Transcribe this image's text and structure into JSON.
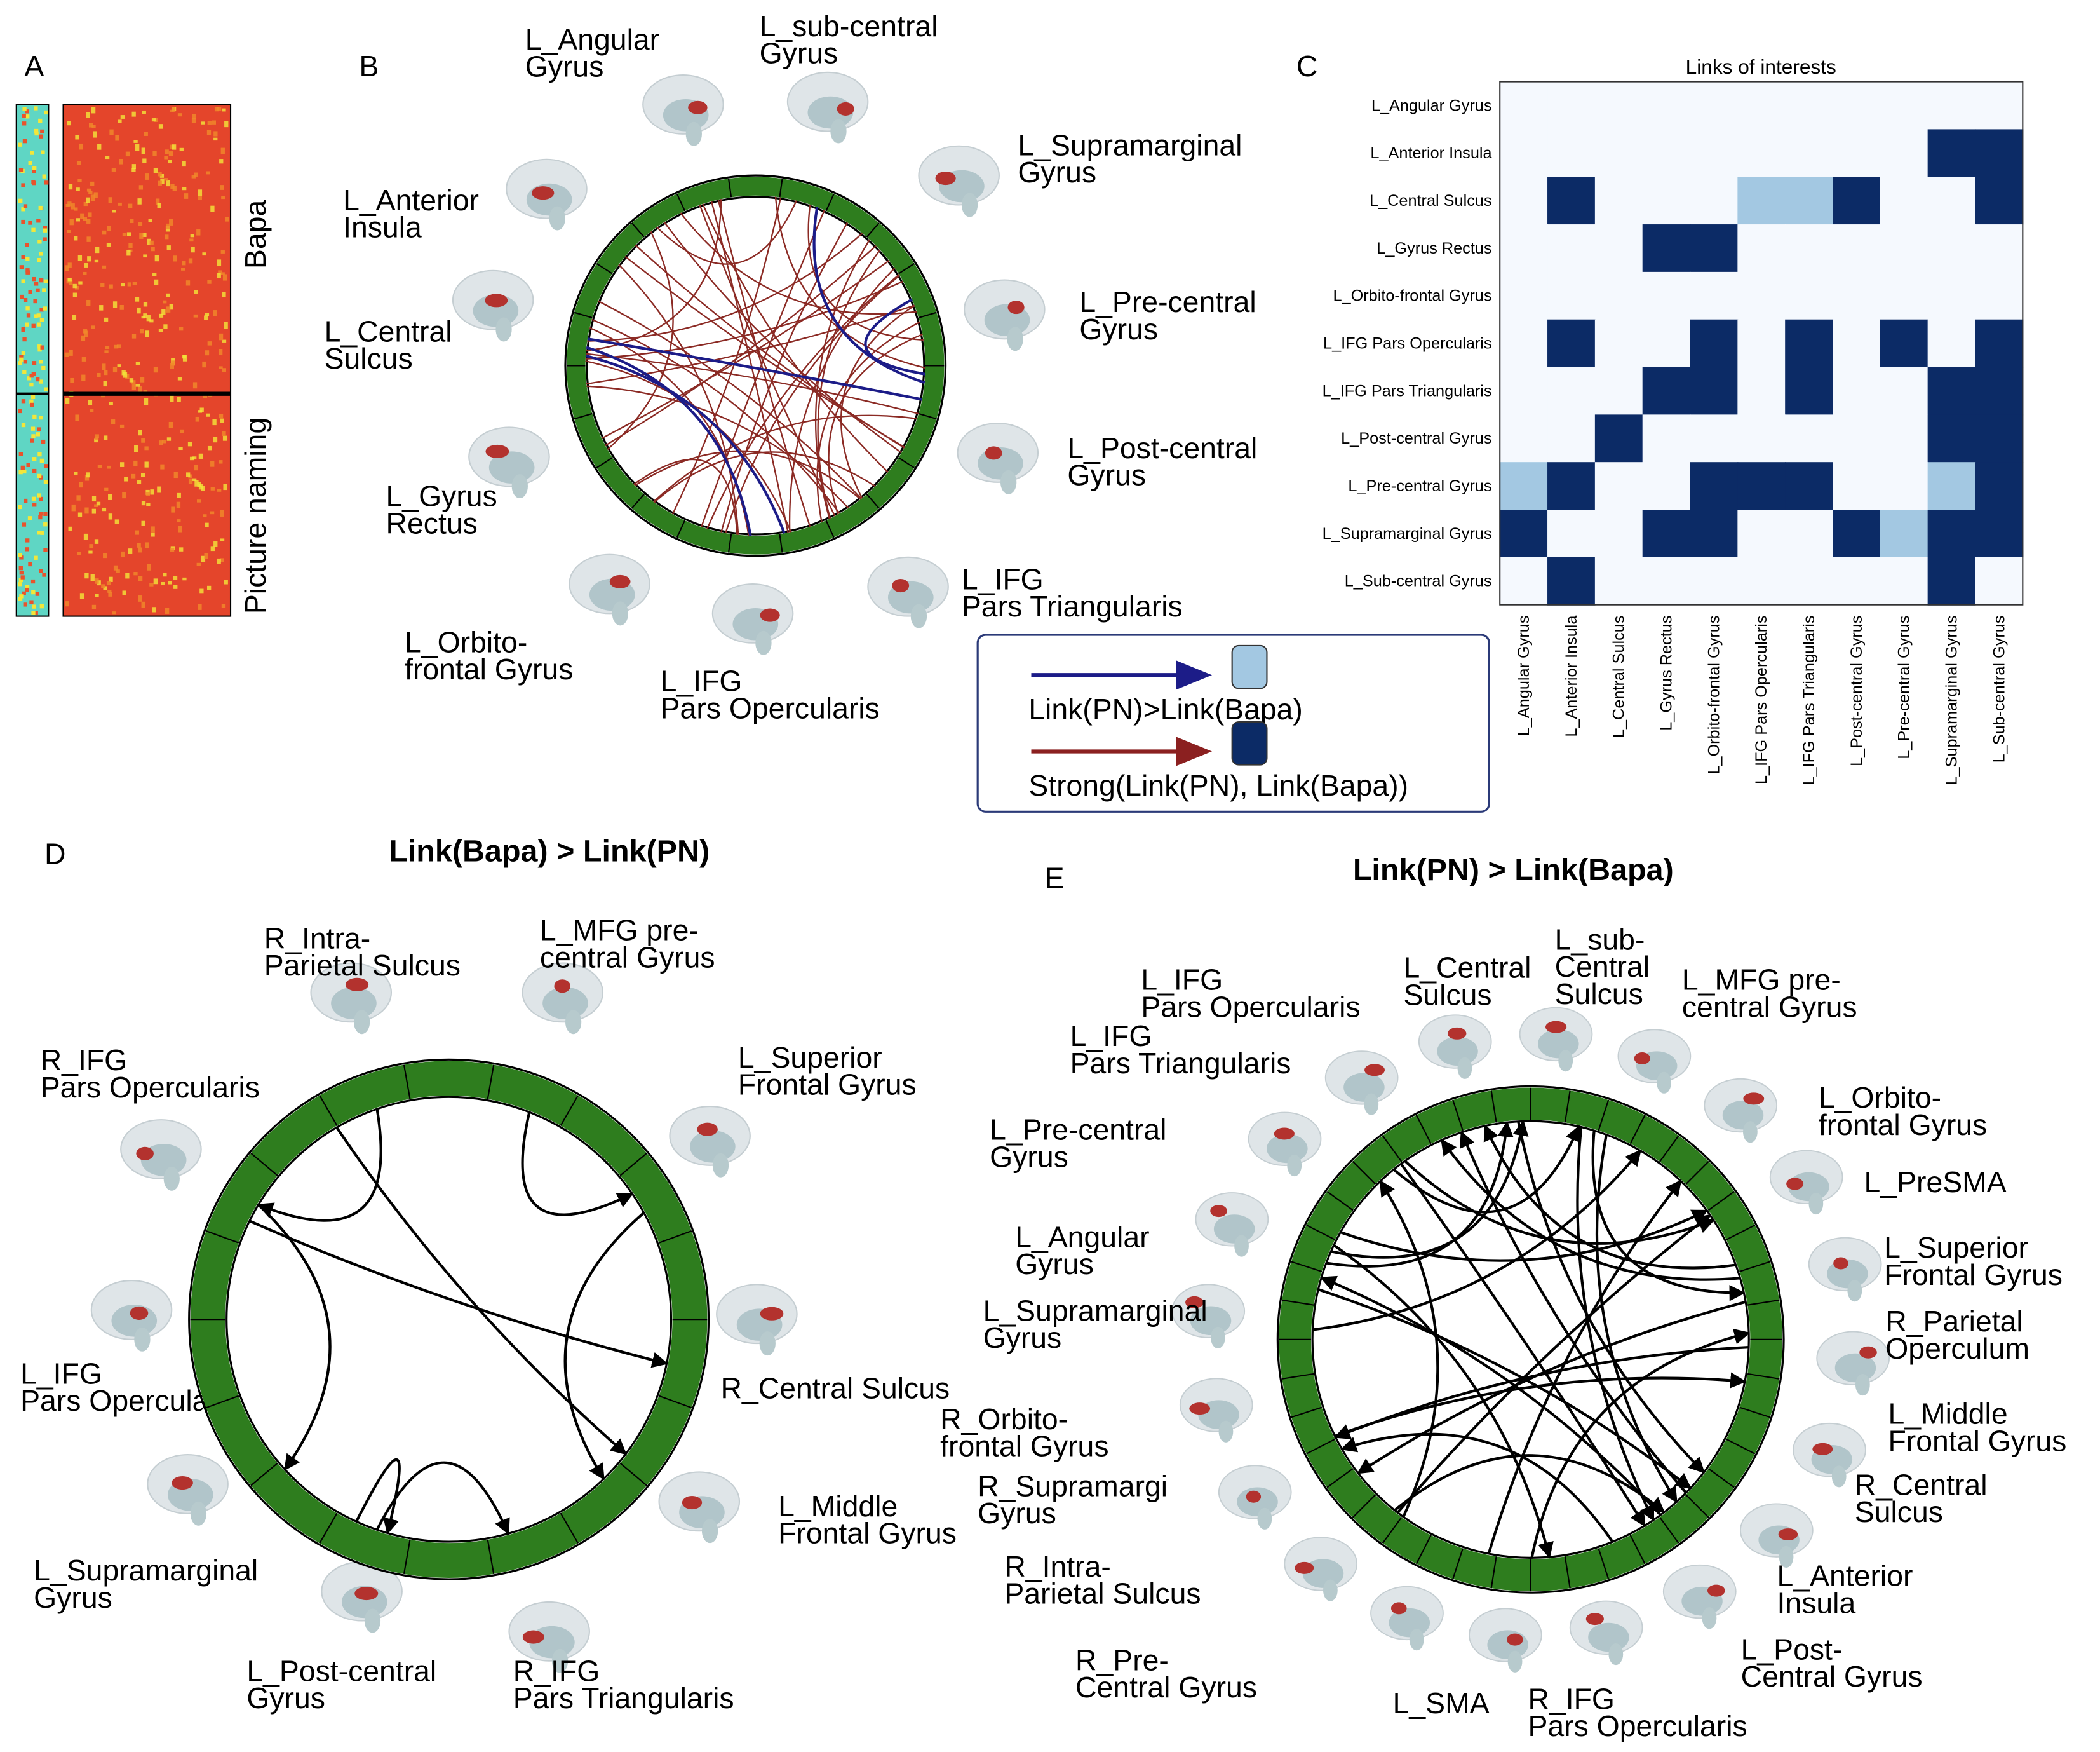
{
  "panel_labels": [
    "A",
    "B",
    "C",
    "D",
    "E"
  ],
  "panel_a": {
    "labels": [
      "Bapa",
      "Picture naming"
    ]
  },
  "panel_b": {
    "regions": [
      [
        "L_Angular",
        "Gyrus"
      ],
      [
        "L_sub-central",
        "Gyrus"
      ],
      [
        "L_Supramarginal",
        "Gyrus"
      ],
      [
        "L_Pre-central",
        "Gyrus"
      ],
      [
        "L_Post-central",
        "Gyrus"
      ],
      [
        "L_IFG",
        "Pars Triangularis"
      ],
      [
        "L_IFG",
        "Pars Opercularis"
      ],
      [
        "L_Orbito-",
        "frontal Gyrus"
      ],
      [
        "L_Gyrus",
        "Rectus"
      ],
      [
        "L_Central",
        "Sulcus"
      ],
      [
        "L_Anterior",
        "Insula"
      ]
    ]
  },
  "panel_c": {
    "title": "Links of interests",
    "rows": [
      "L_Angular Gyrus",
      "L_Anterior Insula",
      "L_Central Sulcus",
      "L_Gyrus Rectus",
      "L_Orbito-frontal Gyrus",
      "L_IFG Pars Opercularis",
      "L_IFG Pars Triangularis",
      "L_Post-central Gyrus",
      "L_Pre-central Gyrus",
      "L_Supramarginal Gyrus",
      "L_Sub-central Gyrus"
    ],
    "columns": [
      "L_Angular Gyrus",
      "L_Anterior Insula",
      "L_Central Sulcus",
      "L_Gyrus Rectus",
      "L_Orbito-frontal Gyrus",
      "L_IFG Pars Opercularis",
      "L_IFG Pars Triangularis",
      "L_Post-central Gyrus",
      "L_Pre-central Gyrus",
      "L_Supramarginal Gyrus",
      "L_Sub-central Gyrus"
    ],
    "matrix": [
      [
        0,
        0,
        0,
        0,
        0,
        0,
        0,
        0,
        0,
        0,
        0
      ],
      [
        0,
        0,
        0,
        0,
        0,
        0,
        0,
        0,
        0,
        2,
        2
      ],
      [
        0,
        2,
        0,
        0,
        0,
        1,
        1,
        2,
        0,
        0,
        2
      ],
      [
        0,
        0,
        0,
        2,
        2,
        0,
        0,
        0,
        0,
        0,
        0
      ],
      [
        0,
        0,
        0,
        0,
        0,
        0,
        0,
        0,
        0,
        0,
        0
      ],
      [
        0,
        2,
        0,
        0,
        2,
        0,
        2,
        0,
        2,
        0,
        2
      ],
      [
        0,
        0,
        0,
        2,
        2,
        0,
        2,
        0,
        0,
        2,
        2
      ],
      [
        0,
        0,
        2,
        0,
        0,
        0,
        0,
        0,
        0,
        2,
        2
      ],
      [
        1,
        2,
        0,
        0,
        2,
        2,
        2,
        0,
        0,
        1,
        2
      ],
      [
        2,
        0,
        0,
        2,
        2,
        0,
        0,
        2,
        1,
        2,
        2
      ],
      [
        0,
        2,
        0,
        0,
        0,
        0,
        0,
        0,
        0,
        2,
        0
      ]
    ],
    "colors": [
      "#f5f9fe",
      "#a3c8e2",
      "#0c2b66"
    ]
  },
  "legend": {
    "entries": [
      {
        "label": "Link(PN)>Link(Bapa)",
        "arrow_color": "#1c1c88",
        "box_color": "#a3c8e2"
      },
      {
        "label": "Strong(Link(PN), Link(Bapa))",
        "arrow_color": "#8b2020",
        "box_color": "#0c2b66"
      }
    ]
  },
  "panel_d": {
    "title": "Link(Bapa) > Link(PN)",
    "regions": [
      [
        "R_Intra-",
        "Parietal Sulcus"
      ],
      [
        "L_MFG pre-",
        "central Gyrus"
      ],
      [
        "L_Superior",
        "Frontal Gyrus"
      ],
      [
        "R_Central Sulcus"
      ],
      [
        "L_Middle",
        "Frontal Gyrus"
      ],
      [
        "R_IFG",
        "Pars Triangularis"
      ],
      [
        "L_Post-central",
        "Gyrus"
      ],
      [
        "L_Supramarginal",
        "Gyrus"
      ],
      [
        "L_IFG",
        "Pars Opercularis"
      ],
      [
        "R_IFG",
        "Pars Opercularis"
      ]
    ]
  },
  "panel_e": {
    "title": "Link(PN) > Link(Bapa)",
    "regions": [
      [
        "L_IFG",
        "Pars Opercularis"
      ],
      [
        "L_IFG",
        "Pars Triangularis"
      ],
      [
        "L_Central",
        "Sulcus"
      ],
      [
        "L_sub-",
        "Central",
        "Sulcus"
      ],
      [
        "L_MFG pre-",
        "central Gyrus"
      ],
      [
        "L_Orbito-",
        "frontal Gyrus"
      ],
      [
        "L_PreSMA"
      ],
      [
        "L_Superior",
        "Frontal Gyrus"
      ],
      [
        "R_Parietal",
        "Operculum"
      ],
      [
        "L_Middle",
        "Frontal Gyrus"
      ],
      [
        "R_Central",
        "Sulcus"
      ],
      [
        "L_Anterior",
        "Insula"
      ],
      [
        "L_Post-",
        "Central Gyrus"
      ],
      [
        "R_IFG",
        "Pars Opercularis"
      ],
      [
        "L_SMA"
      ],
      [
        "R_Pre-",
        "Central Gyrus"
      ],
      [
        "R_Intra-",
        "Parietal Sulcus"
      ],
      [
        "R_Supramargi",
        "Gyrus"
      ],
      [
        "R_Orbito-",
        "frontal Gyrus"
      ],
      [
        "L_Supramarginal",
        "Gyrus"
      ],
      [
        "L_Angular",
        "Gyrus"
      ],
      [
        "L_Pre-central",
        "Gyrus"
      ]
    ]
  }
}
